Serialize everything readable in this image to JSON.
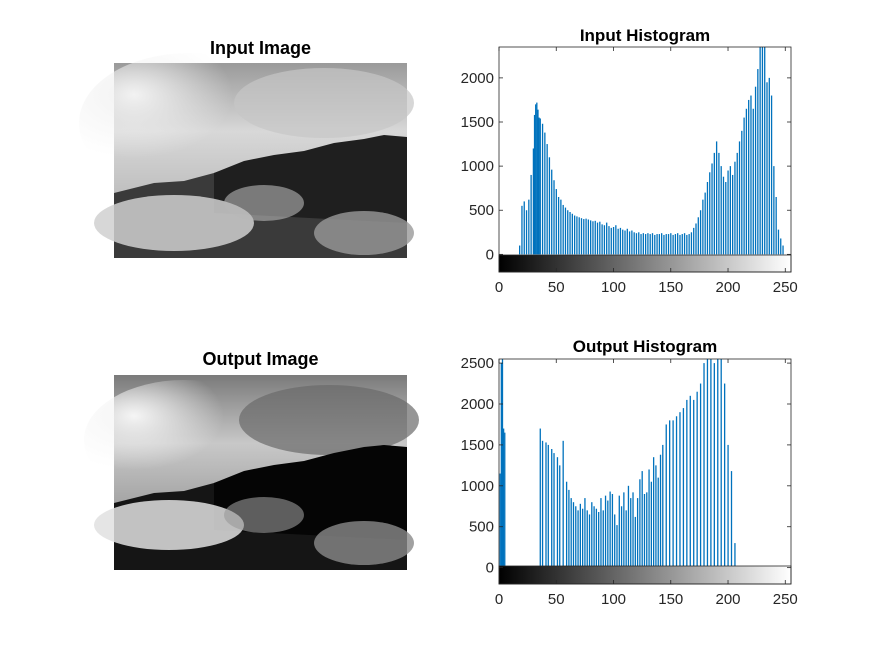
{
  "figure": {
    "panels": {
      "input_image": {
        "title": "Input Image"
      },
      "output_image": {
        "title": "Output Image"
      }
    }
  },
  "colors": {
    "bar": "#0072bd",
    "axis": "#262626",
    "background": "#ffffff"
  },
  "chart_data": [
    {
      "type": "bar",
      "title": "Input Histogram",
      "xlabel": "",
      "ylabel": "",
      "xlim": [
        0,
        255
      ],
      "ylim": [
        -200,
        2350
      ],
      "x_ticks": [
        0,
        50,
        100,
        150,
        200,
        250
      ],
      "y_ticks": [
        0,
        500,
        1000,
        1500,
        2000
      ],
      "grid": false,
      "colorbar": "grayscale",
      "x": [
        18,
        20,
        22,
        24,
        26,
        28,
        30,
        31,
        32,
        33,
        34,
        35,
        36,
        38,
        40,
        42,
        44,
        46,
        48,
        50,
        52,
        54,
        56,
        58,
        60,
        62,
        64,
        66,
        68,
        70,
        72,
        74,
        76,
        78,
        80,
        82,
        84,
        86,
        88,
        90,
        92,
        94,
        96,
        98,
        100,
        102,
        104,
        106,
        108,
        110,
        112,
        114,
        116,
        118,
        120,
        122,
        124,
        126,
        128,
        130,
        132,
        134,
        136,
        138,
        140,
        142,
        144,
        146,
        148,
        150,
        152,
        154,
        156,
        158,
        160,
        162,
        164,
        166,
        168,
        170,
        172,
        174,
        176,
        178,
        180,
        182,
        184,
        186,
        188,
        190,
        192,
        194,
        196,
        198,
        200,
        202,
        204,
        206,
        208,
        210,
        212,
        214,
        216,
        218,
        220,
        222,
        224,
        226,
        228,
        230,
        232,
        234,
        236,
        238,
        240,
        242,
        244,
        246,
        248
      ],
      "values": [
        100,
        550,
        600,
        500,
        620,
        900,
        1200,
        1580,
        1700,
        1720,
        1640,
        1550,
        1540,
        1480,
        1380,
        1250,
        1100,
        960,
        840,
        740,
        650,
        620,
        560,
        530,
        500,
        480,
        460,
        440,
        430,
        420,
        410,
        400,
        405,
        395,
        385,
        375,
        380,
        360,
        370,
        340,
        330,
        360,
        320,
        300,
        310,
        330,
        290,
        300,
        280,
        270,
        290,
        260,
        270,
        250,
        240,
        250,
        230,
        240,
        230,
        240,
        230,
        240,
        220,
        230,
        230,
        240,
        220,
        230,
        230,
        240,
        220,
        230,
        240,
        220,
        230,
        240,
        220,
        230,
        250,
        300,
        350,
        420,
        500,
        620,
        700,
        820,
        930,
        1030,
        1150,
        1280,
        1150,
        1000,
        880,
        820,
        950,
        1000,
        900,
        1050,
        1150,
        1280,
        1400,
        1550,
        1650,
        1750,
        1800,
        1650,
        1900,
        2100,
        2350,
        2350,
        2350,
        1950,
        2000,
        1800,
        1000,
        650,
        280,
        180,
        100
      ]
    },
    {
      "type": "bar",
      "title": "Output Histogram",
      "xlabel": "",
      "ylabel": "",
      "xlim": [
        0,
        255
      ],
      "ylim": [
        -200,
        2550
      ],
      "x_ticks": [
        0,
        50,
        100,
        150,
        200,
        250
      ],
      "y_ticks": [
        0,
        500,
        1000,
        1500,
        2000,
        2500
      ],
      "grid": false,
      "colorbar": "grayscale",
      "x": [
        1,
        2,
        3,
        4,
        5,
        6,
        36,
        38,
        41,
        43,
        46,
        48,
        51,
        53,
        56,
        59,
        61,
        63,
        65,
        67,
        69,
        71,
        73,
        75,
        77,
        79,
        81,
        83,
        85,
        87,
        89,
        91,
        93,
        95,
        97,
        99,
        101,
        103,
        105,
        107,
        109,
        111,
        113,
        115,
        117,
        119,
        121,
        123,
        125,
        127,
        129,
        131,
        133,
        135,
        137,
        139,
        141,
        143,
        146,
        149,
        152,
        155,
        158,
        161,
        164,
        167,
        170,
        173,
        176,
        179,
        182,
        185,
        188,
        191,
        194,
        197,
        200,
        203,
        206,
        209,
        212,
        215,
        218,
        221,
        224,
        227,
        230,
        233,
        236,
        239
      ],
      "values": [
        1150,
        2500,
        2550,
        1700,
        1650,
        0,
        1700,
        1550,
        1530,
        1500,
        1450,
        1400,
        1350,
        1250,
        1550,
        1050,
        950,
        850,
        800,
        750,
        700,
        780,
        720,
        850,
        700,
        650,
        800,
        750,
        720,
        680,
        850,
        700,
        880,
        820,
        930,
        900,
        650,
        520,
        880,
        750,
        920,
        700,
        1000,
        850,
        920,
        620,
        850,
        1080,
        1180,
        900,
        920,
        1200,
        1050,
        1350,
        1250,
        1100,
        1380,
        1500,
        1750,
        1800,
        1800,
        1850,
        1900,
        1950,
        2050,
        2100,
        2050,
        2150,
        2250,
        2500,
        2550,
        2550,
        2500,
        2550,
        2550,
        2250,
        1500,
        1180,
        300,
        0,
        0,
        0,
        0,
        0,
        0,
        0,
        0,
        0,
        0,
        0
      ]
    }
  ]
}
